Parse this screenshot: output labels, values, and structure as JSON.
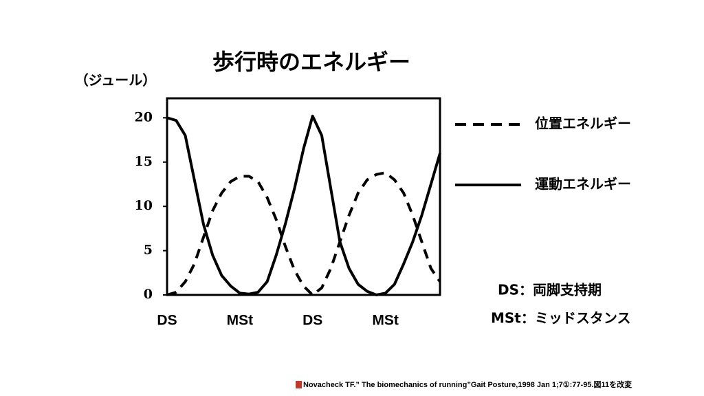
{
  "chart_data": {
    "type": "line",
    "title": "歩行時のエネルギー",
    "y_label": "（ジュール）",
    "categories": [
      "DS",
      null,
      null,
      null,
      null,
      null,
      null,
      null,
      "MSt",
      null,
      null,
      null,
      null,
      null,
      null,
      null,
      "DS",
      null,
      null,
      null,
      null,
      null,
      null,
      null,
      "MSt",
      null,
      null,
      null,
      null,
      null,
      null
    ],
    "series": [
      {
        "name": "位置エネルギー",
        "color": "#000000",
        "linestyle": "dashed",
        "values": [
          0,
          0.3,
          1.5,
          3.5,
          6.5,
          9.5,
          11.5,
          12.8,
          13.4,
          13.4,
          12.8,
          11,
          8.5,
          5.5,
          2.8,
          1,
          0,
          0.8,
          3,
          6,
          9,
          11.5,
          13,
          13.6,
          13.8,
          13,
          11.5,
          9,
          6,
          3,
          1.5
        ]
      },
      {
        "name": "運動エネルギー",
        "color": "#000000",
        "linestyle": "solid",
        "values": [
          20,
          19.7,
          18,
          13,
          8,
          4.5,
          2.2,
          1,
          0.2,
          0.1,
          0.3,
          1.5,
          4.5,
          8,
          12,
          16.5,
          20.2,
          18,
          12,
          6,
          3,
          1.2,
          0.4,
          0,
          0.2,
          1.2,
          3.5,
          6,
          9,
          12.5,
          16
        ]
      }
    ],
    "ylim": [
      0,
      22.2
    ],
    "yticks": [
      0,
      5,
      10,
      15,
      20
    ],
    "annotations": [
      "DS：両脚支持期",
      "MSt：ミッドスタンス"
    ],
    "source": "Novacheck TF.” The biomechanics of running”Gait Posture,1998 Jan 1;7①:77-95.図11を改変"
  }
}
